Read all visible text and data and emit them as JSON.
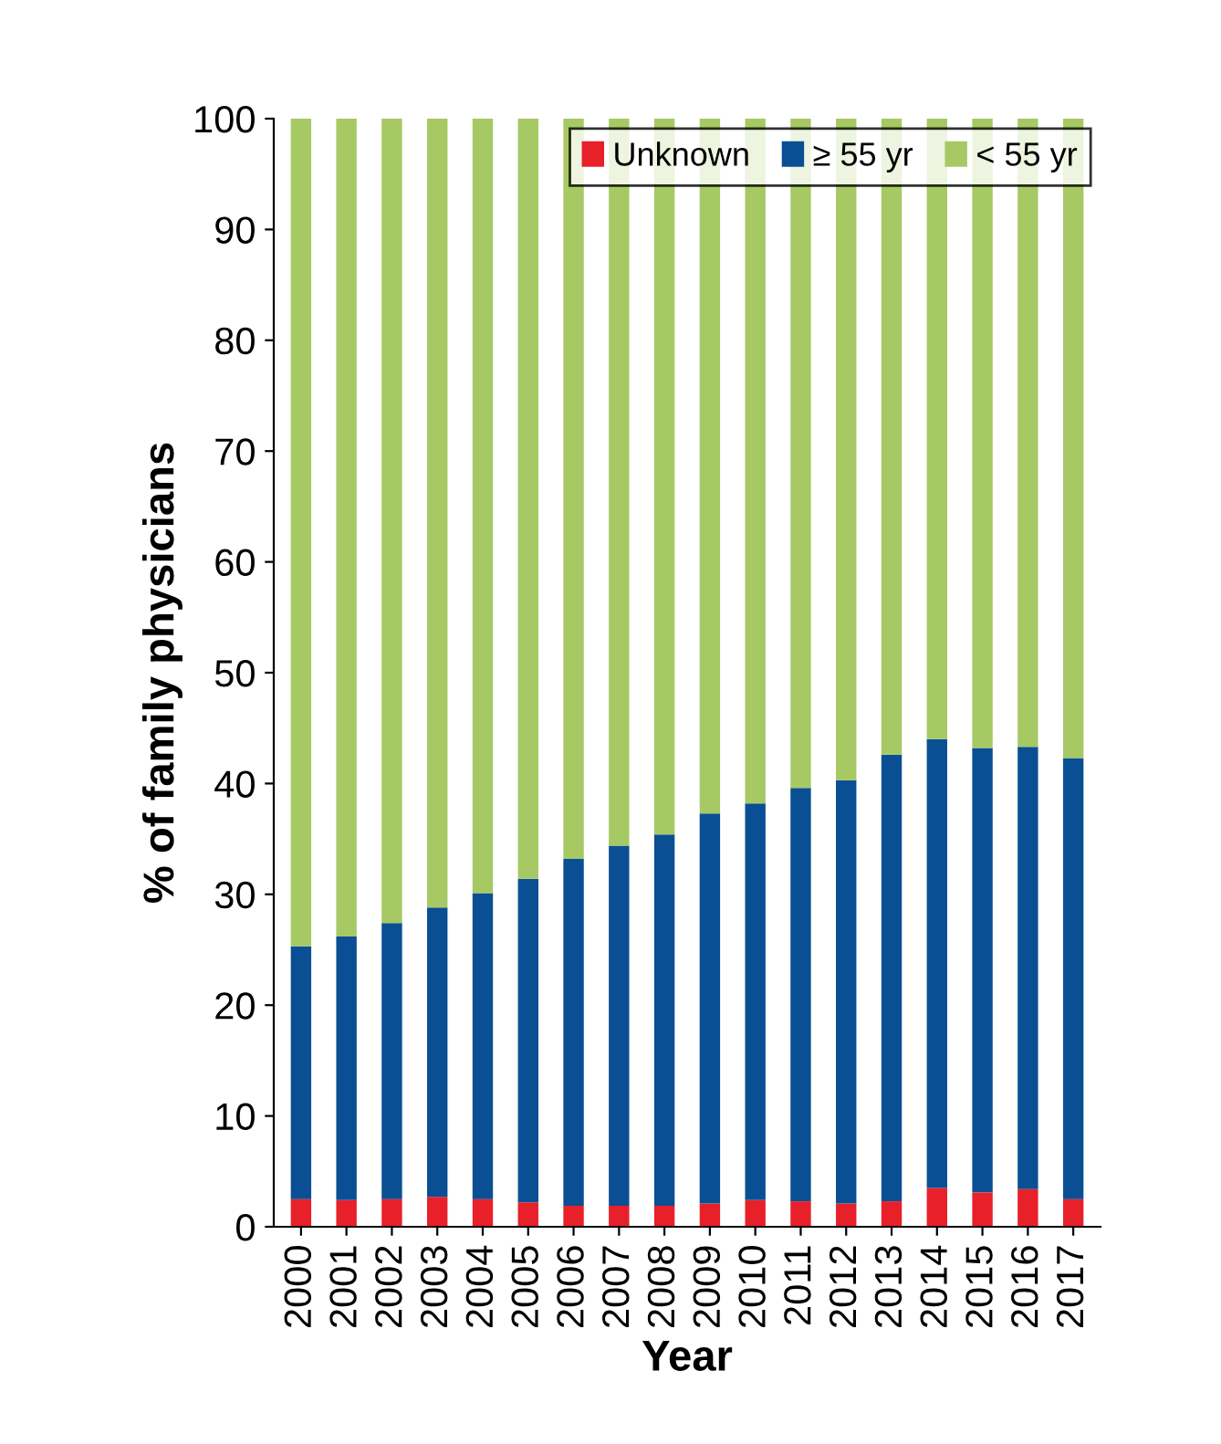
{
  "chart_data": {
    "type": "bar",
    "stacked": true,
    "xlabel": "Year",
    "ylabel": "% of family physicians",
    "categories": [
      "2000",
      "2001",
      "2002",
      "2003",
      "2004",
      "2005",
      "2006",
      "2007",
      "2008",
      "2009",
      "2010",
      "2011",
      "2012",
      "2013",
      "2014",
      "2015",
      "2016",
      "2017"
    ],
    "series": [
      {
        "name": "Unknown",
        "color": "#e8202a",
        "values": [
          2.5,
          2.4,
          2.5,
          2.7,
          2.5,
          2.2,
          1.9,
          1.9,
          1.9,
          2.1,
          2.4,
          2.3,
          2.1,
          2.3,
          3.5,
          3.1,
          3.4,
          2.5
        ]
      },
      {
        "name": "≥ 55 yr",
        "color": "#0a4f94",
        "values": [
          22.8,
          23.8,
          24.9,
          26.1,
          27.6,
          29.2,
          31.3,
          32.5,
          33.5,
          35.2,
          35.8,
          37.3,
          38.2,
          40.3,
          40.5,
          40.1,
          39.9,
          39.8
        ]
      },
      {
        "name": "< 55 yr",
        "color": "#a6c964",
        "values": [
          74.7,
          73.8,
          72.6,
          71.2,
          69.9,
          68.6,
          66.8,
          65.6,
          64.6,
          62.7,
          61.8,
          60.4,
          59.7,
          57.4,
          56.0,
          56.8,
          56.7,
          57.7
        ]
      }
    ],
    "ylim": [
      0,
      100
    ],
    "yticks": [
      0,
      10,
      20,
      30,
      40,
      50,
      60,
      70,
      80,
      90,
      100
    ],
    "grid": false,
    "legend": "top right"
  }
}
